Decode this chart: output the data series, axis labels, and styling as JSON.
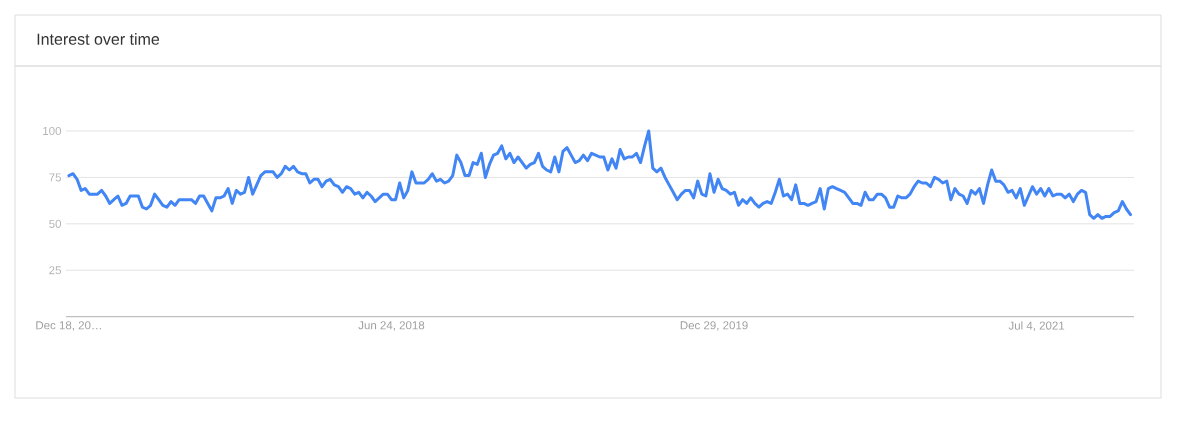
{
  "chart_data": {
    "type": "line",
    "title": "Interest over time",
    "x": [
      "2016-12-18",
      "2016-12-25",
      "2017-01-01",
      "2017-01-08",
      "2017-01-15",
      "2017-01-22",
      "2017-01-29",
      "2017-02-05",
      "2017-02-12",
      "2017-02-19",
      "2017-02-26",
      "2017-03-05",
      "2017-03-12",
      "2017-03-19",
      "2017-03-26",
      "2017-04-02",
      "2017-04-09",
      "2017-04-16",
      "2017-04-23",
      "2017-04-30",
      "2017-05-07",
      "2017-05-14",
      "2017-05-21",
      "2017-05-28",
      "2017-06-04",
      "2017-06-11",
      "2017-06-18",
      "2017-06-25",
      "2017-07-02",
      "2017-07-09",
      "2017-07-16",
      "2017-07-23",
      "2017-07-30",
      "2017-08-06",
      "2017-08-13",
      "2017-08-20",
      "2017-08-27",
      "2017-09-03",
      "2017-09-10",
      "2017-09-17",
      "2017-09-24",
      "2017-10-01",
      "2017-10-08",
      "2017-10-15",
      "2017-10-22",
      "2017-10-29",
      "2017-11-05",
      "2017-11-12",
      "2017-11-19",
      "2017-11-26",
      "2017-12-03",
      "2017-12-10",
      "2017-12-17",
      "2017-12-24",
      "2017-12-31",
      "2018-01-07",
      "2018-01-14",
      "2018-01-21",
      "2018-01-28",
      "2018-02-04",
      "2018-02-11",
      "2018-02-18",
      "2018-02-25",
      "2018-03-04",
      "2018-03-11",
      "2018-03-18",
      "2018-03-25",
      "2018-04-01",
      "2018-04-08",
      "2018-04-15",
      "2018-04-22",
      "2018-04-29",
      "2018-05-06",
      "2018-05-13",
      "2018-05-20",
      "2018-05-27",
      "2018-06-03",
      "2018-06-10",
      "2018-06-17",
      "2018-06-24",
      "2018-07-01",
      "2018-07-08",
      "2018-07-15",
      "2018-07-22",
      "2018-07-29",
      "2018-08-05",
      "2018-08-12",
      "2018-08-19",
      "2018-08-26",
      "2018-09-02",
      "2018-09-09",
      "2018-09-16",
      "2018-09-23",
      "2018-09-30",
      "2018-10-07",
      "2018-10-14",
      "2018-10-21",
      "2018-10-28",
      "2018-11-04",
      "2018-11-11",
      "2018-11-18",
      "2018-11-25",
      "2018-12-02",
      "2018-12-09",
      "2018-12-16",
      "2018-12-23",
      "2018-12-30",
      "2019-01-06",
      "2019-01-13",
      "2019-01-20",
      "2019-01-27",
      "2019-02-03",
      "2019-02-10",
      "2019-02-17",
      "2019-02-24",
      "2019-03-03",
      "2019-03-10",
      "2019-03-17",
      "2019-03-24",
      "2019-03-31",
      "2019-04-07",
      "2019-04-14",
      "2019-04-21",
      "2019-04-28",
      "2019-05-05",
      "2019-05-12",
      "2019-05-19",
      "2019-05-26",
      "2019-06-02",
      "2019-06-09",
      "2019-06-16",
      "2019-06-23",
      "2019-06-30",
      "2019-07-07",
      "2019-07-14",
      "2019-07-21",
      "2019-07-28",
      "2019-08-04",
      "2019-08-11",
      "2019-08-18",
      "2019-08-25",
      "2019-09-01",
      "2019-09-08",
      "2019-09-15",
      "2019-09-22",
      "2019-09-29",
      "2019-10-06",
      "2019-10-13",
      "2019-10-20",
      "2019-10-27",
      "2019-11-03",
      "2019-11-10",
      "2019-11-17",
      "2019-11-24",
      "2019-12-01",
      "2019-12-08",
      "2019-12-15",
      "2019-12-22",
      "2019-12-29",
      "2020-01-05",
      "2020-01-12",
      "2020-01-19",
      "2020-01-26",
      "2020-02-02",
      "2020-02-09",
      "2020-02-16",
      "2020-02-23",
      "2020-03-01",
      "2020-03-08",
      "2020-03-15",
      "2020-03-22",
      "2020-03-29",
      "2020-04-05",
      "2020-04-12",
      "2020-04-19",
      "2020-04-26",
      "2020-05-03",
      "2020-05-10",
      "2020-05-17",
      "2020-05-24",
      "2020-05-31",
      "2020-06-07",
      "2020-06-14",
      "2020-06-21",
      "2020-06-28",
      "2020-07-05",
      "2020-07-12",
      "2020-07-19",
      "2020-07-26",
      "2020-08-02",
      "2020-08-09",
      "2020-08-16",
      "2020-08-23",
      "2020-08-30",
      "2020-09-06",
      "2020-09-13",
      "2020-09-20",
      "2020-09-27",
      "2020-10-04",
      "2020-10-11",
      "2020-10-18",
      "2020-10-25",
      "2020-11-01",
      "2020-11-08",
      "2020-11-15",
      "2020-11-22",
      "2020-11-29",
      "2020-12-06",
      "2020-12-13",
      "2020-12-20",
      "2020-12-27",
      "2021-01-03",
      "2021-01-10",
      "2021-01-17",
      "2021-01-24",
      "2021-01-31",
      "2021-02-07",
      "2021-02-14",
      "2021-02-21",
      "2021-02-28",
      "2021-03-07",
      "2021-03-14",
      "2021-03-21",
      "2021-03-28",
      "2021-04-04",
      "2021-04-11",
      "2021-04-18",
      "2021-04-25",
      "2021-05-02",
      "2021-05-09",
      "2021-05-16",
      "2021-05-23",
      "2021-05-30",
      "2021-06-06",
      "2021-06-13",
      "2021-06-20",
      "2021-06-27",
      "2021-07-04",
      "2021-07-11",
      "2021-07-18",
      "2021-07-25",
      "2021-08-01",
      "2021-08-08",
      "2021-08-15",
      "2021-08-22",
      "2021-08-29",
      "2021-09-05",
      "2021-09-12",
      "2021-09-19",
      "2021-09-26",
      "2021-10-03",
      "2021-10-10",
      "2021-10-17",
      "2021-10-24",
      "2021-10-31",
      "2021-11-07",
      "2021-11-14",
      "2021-11-21",
      "2021-11-28",
      "2021-12-05",
      "2021-12-12"
    ],
    "series": [
      {
        "color": "#4285f4",
        "values": [
          76,
          77,
          74,
          68,
          69,
          66,
          66,
          66,
          68,
          65,
          61,
          63,
          65,
          60,
          61,
          65,
          65,
          65,
          59,
          58,
          60,
          66,
          63,
          60,
          59,
          62,
          60,
          63,
          63,
          63,
          63,
          61,
          65,
          65,
          61,
          57,
          64,
          64,
          65,
          69,
          61,
          68,
          66,
          67,
          75,
          66,
          71,
          76,
          78,
          78,
          78,
          75,
          77,
          81,
          79,
          81,
          78,
          77,
          77,
          72,
          74,
          74,
          70,
          73,
          74,
          71,
          70,
          67,
          70,
          69,
          66,
          67,
          64,
          67,
          65,
          62,
          64,
          66,
          66,
          63,
          63,
          72,
          64,
          68,
          78,
          72,
          72,
          72,
          74,
          77,
          73,
          74,
          72,
          73,
          76,
          87,
          83,
          76,
          76,
          83,
          82,
          88,
          75,
          82,
          87,
          88,
          92,
          85,
          88,
          83,
          86,
          83,
          80,
          82,
          83,
          88,
          81,
          79,
          78,
          86,
          78,
          89,
          91,
          87,
          83,
          84,
          87,
          84,
          88,
          87,
          86,
          86,
          79,
          85,
          80,
          90,
          85,
          86,
          86,
          88,
          83,
          92,
          100,
          80,
          78,
          80,
          75,
          71,
          67,
          63,
          66,
          68,
          68,
          64,
          73,
          66,
          65,
          77,
          67,
          74,
          69,
          68,
          66,
          67,
          60,
          63,
          61,
          64,
          61,
          59,
          61,
          62,
          61,
          67,
          74,
          65,
          66,
          63,
          71,
          61,
          61,
          60,
          61,
          62,
          69,
          58,
          69,
          70,
          69,
          68,
          67,
          64,
          61,
          61,
          60,
          67,
          63,
          63,
          66,
          66,
          64,
          59,
          59,
          65,
          64,
          64,
          66,
          70,
          73,
          72,
          72,
          70,
          75,
          74,
          72,
          73,
          63,
          69,
          66,
          65,
          61,
          68,
          66,
          69,
          61,
          71,
          79,
          73,
          73,
          71,
          67,
          68,
          64,
          69,
          60,
          65,
          70,
          66,
          69,
          65,
          69,
          65,
          66,
          66,
          64,
          66,
          62,
          66,
          68,
          67,
          55,
          53,
          55,
          53,
          54,
          54,
          56,
          57,
          62,
          58,
          55
        ]
      }
    ],
    "xlim": [
      "2016-12-13",
      "2021-12-18"
    ],
    "ylim": [
      0,
      100
    ],
    "xticks": [
      {
        "value": "2016-12-18",
        "label": "Dec 18, 20…"
      },
      {
        "value": "2018-06-24",
        "label": "Jun 24, 2018"
      },
      {
        "value": "2019-12-29",
        "label": "Dec 29, 2019"
      },
      {
        "value": "2021-07-04",
        "label": "Jul 4, 2021"
      }
    ],
    "yticks": [
      25,
      50,
      75,
      100
    ],
    "grid": "y"
  }
}
